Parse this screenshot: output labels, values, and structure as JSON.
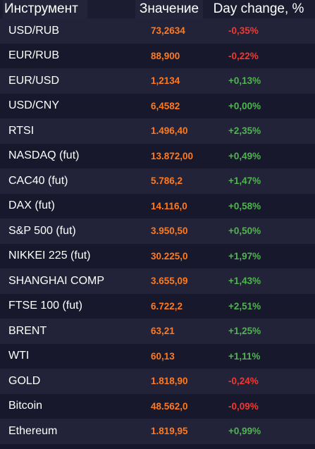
{
  "header": {
    "instrument": "Инструмент",
    "value": "Значение",
    "change": "Day change, %"
  },
  "colors": {
    "value": "#ff7a1f",
    "positive": "#4fb54f",
    "negative": "#ee3a32"
  },
  "rows": [
    {
      "name": "USD/RUB",
      "value": "73,2634",
      "change": "-0,35%",
      "dir": "neg"
    },
    {
      "name": "EUR/RUB",
      "value": "88,900",
      "change": "-0,22%",
      "dir": "neg"
    },
    {
      "name": "EUR/USD",
      "value": "1,2134",
      "change": "+0,13%",
      "dir": "pos"
    },
    {
      "name": "USD/CNY",
      "value": "6,4582",
      "change": "+0,00%",
      "dir": "pos"
    },
    {
      "name": "RTSI",
      "value": "1.496,40",
      "change": "+2,35%",
      "dir": "pos"
    },
    {
      "name": "NASDAQ (fut)",
      "value": "13.872,00",
      "change": "+0,49%",
      "dir": "pos"
    },
    {
      "name": "CAC40 (fut)",
      "value": "5.786,2",
      "change": "+1,47%",
      "dir": "pos"
    },
    {
      "name": "DAX (fut)",
      "value": "14.116,0",
      "change": "+0,58%",
      "dir": "pos"
    },
    {
      "name": "S&P 500 (fut)",
      "value": "3.950,50",
      "change": "+0,50%",
      "dir": "pos"
    },
    {
      "name": "NIKKEI 225 (fut)",
      "value": "30.225,0",
      "change": "+1,97%",
      "dir": "pos"
    },
    {
      "name": "SHANGHAI COMP",
      "value": "3.655,09",
      "change": "+1,43%",
      "dir": "pos"
    },
    {
      "name": "FTSE 100 (fut)",
      "value": "6.722,2",
      "change": "+2,51%",
      "dir": "pos"
    },
    {
      "name": "BRENT",
      "value": "63,21",
      "change": "+1,25%",
      "dir": "pos"
    },
    {
      "name": "WTI",
      "value": "60,13",
      "change": "+1,11%",
      "dir": "pos"
    },
    {
      "name": "GOLD",
      "value": "1.818,90",
      "change": "-0,24%",
      "dir": "neg"
    },
    {
      "name": "Bitcoin",
      "value": "48.562,0",
      "change": "-0,09%",
      "dir": "neg"
    },
    {
      "name": "Ethereum",
      "value": "1.819,95",
      "change": "+0,99%",
      "dir": "pos"
    }
  ]
}
